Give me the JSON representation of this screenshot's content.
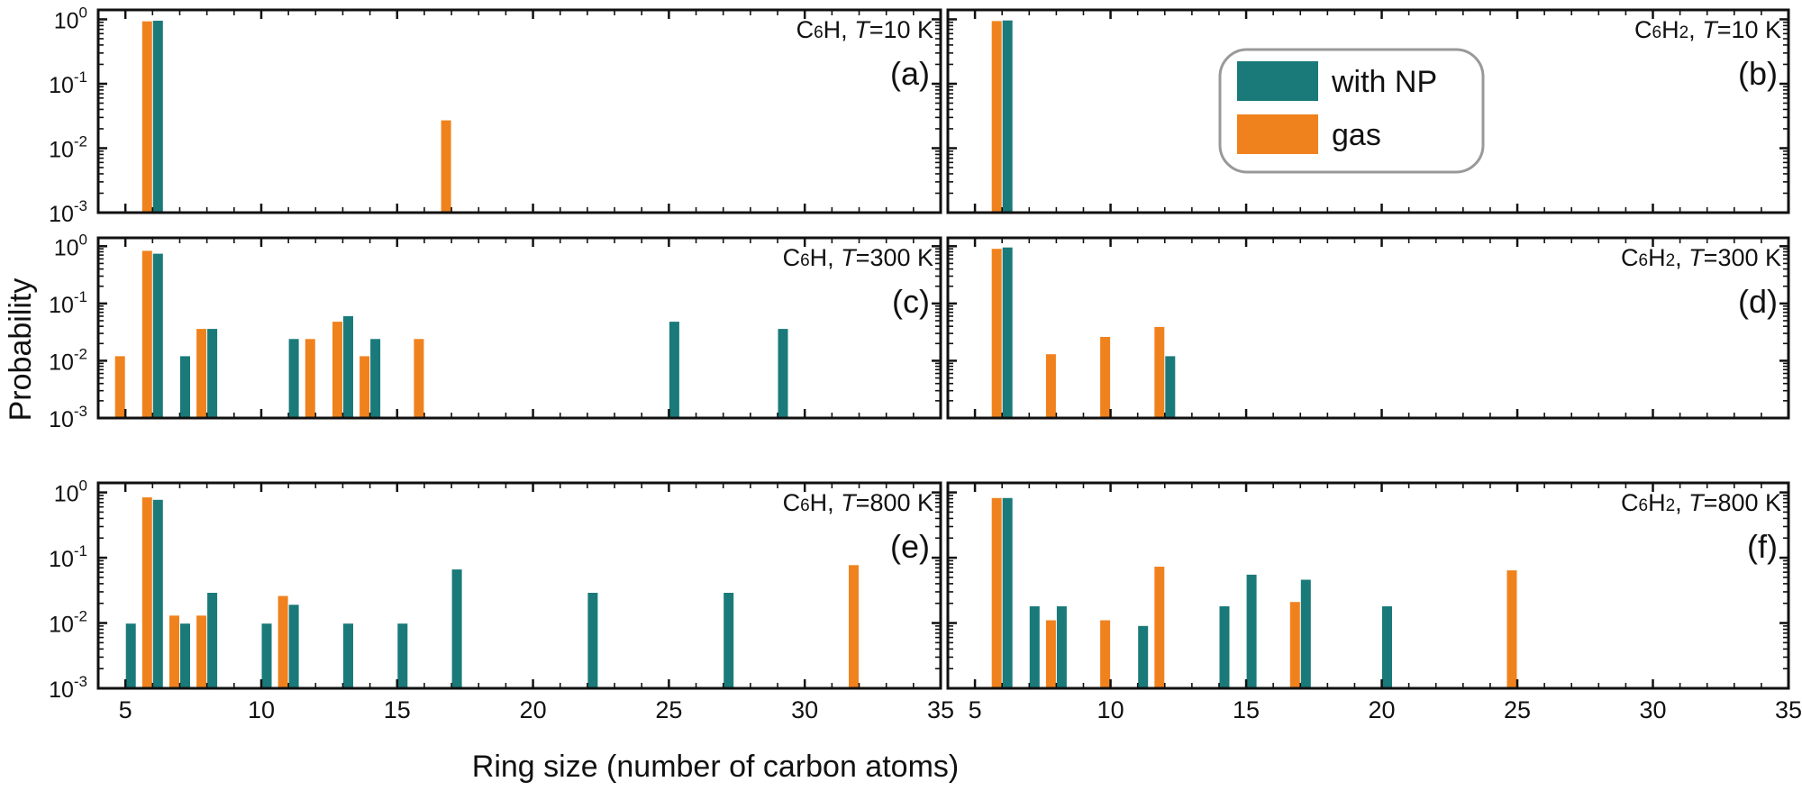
{
  "colors": {
    "with_np": "#1a7a7a",
    "gas": "#f0821e",
    "axis": "#111111",
    "legend_border": "#999999"
  },
  "chart_data": {
    "type": "bar",
    "xlabel": "Ring size (number of carbon atoms)",
    "ylabel": "Probability",
    "xlim": [
      4,
      35
    ],
    "ylim": [
      0.001,
      1.4
    ],
    "yscale": "log",
    "x_ticks": [
      5,
      10,
      15,
      20,
      25,
      30,
      35
    ],
    "y_ticks": [
      {
        "value": 1,
        "base": "10",
        "exp": "0"
      },
      {
        "value": 0.1,
        "base": "10",
        "exp": "-1"
      },
      {
        "value": 0.01,
        "base": "10",
        "exp": "-2"
      },
      {
        "value": 0.001,
        "base": "10",
        "exp": "-3"
      }
    ],
    "legend": {
      "placement": "top-center of panel (b)",
      "entries": [
        {
          "series": "with_np",
          "label": "with NP"
        },
        {
          "series": "gas",
          "label": "gas"
        }
      ]
    },
    "panels": [
      {
        "id": "a",
        "label": "(a)",
        "molecule": "C",
        "sub": "6",
        "sub_tail": "H",
        "tlabel": "T",
        "tvalue": "=10 K",
        "series": [
          {
            "name": "with NP",
            "key": "with_np",
            "x": [
              6
            ],
            "y": [
              0.95
            ]
          },
          {
            "name": "gas",
            "key": "gas",
            "x": [
              6,
              17
            ],
            "y": [
              0.93,
              0.027
            ]
          }
        ]
      },
      {
        "id": "b",
        "label": "(b)",
        "molecule": "C",
        "sub": "6",
        "sub_tail": "H",
        "sub2": "2",
        "tlabel": "T",
        "tvalue": "=10 K",
        "series": [
          {
            "name": "with NP",
            "key": "with_np",
            "x": [
              6
            ],
            "y": [
              0.96
            ]
          },
          {
            "name": "gas",
            "key": "gas",
            "x": [
              6
            ],
            "y": [
              0.94
            ]
          }
        ]
      },
      {
        "id": "c",
        "label": "(c)",
        "molecule": "C",
        "sub": "6",
        "sub_tail": "H",
        "tlabel": "T",
        "tvalue": "=300 K",
        "series": [
          {
            "name": "with NP",
            "key": "with_np",
            "x": [
              6,
              7,
              8,
              11,
              13,
              14,
              25,
              29
            ],
            "y": [
              0.74,
              0.012,
              0.036,
              0.024,
              0.06,
              0.024,
              0.048,
              0.036
            ]
          },
          {
            "name": "gas",
            "key": "gas",
            "x": [
              5,
              6,
              8,
              12,
              13,
              14,
              16
            ],
            "y": [
              0.012,
              0.83,
              0.036,
              0.024,
              0.048,
              0.012,
              0.024
            ]
          }
        ]
      },
      {
        "id": "d",
        "label": "(d)",
        "molecule": "C",
        "sub": "6",
        "sub_tail": "H",
        "sub2": "2",
        "tlabel": "T",
        "tvalue": "=300 K",
        "series": [
          {
            "name": "with NP",
            "key": "with_np",
            "x": [
              6,
              12
            ],
            "y": [
              0.95,
              0.012
            ]
          },
          {
            "name": "gas",
            "key": "gas",
            "x": [
              6,
              8,
              10,
              12
            ],
            "y": [
              0.9,
              0.013,
              0.026,
              0.039
            ]
          }
        ]
      },
      {
        "id": "e",
        "label": "(e)",
        "molecule": "C",
        "sub": "6",
        "sub_tail": "H",
        "tlabel": "T",
        "tvalue": "=800 K",
        "series": [
          {
            "name": "with NP",
            "key": "with_np",
            "x": [
              5,
              6,
              7,
              8,
              10,
              11,
              13,
              15,
              17,
              22,
              27
            ],
            "y": [
              0.0098,
              0.77,
              0.0098,
              0.029,
              0.0098,
              0.019,
              0.0098,
              0.0098,
              0.066,
              0.029,
              0.029
            ]
          },
          {
            "name": "gas",
            "key": "gas",
            "x": [
              6,
              7,
              8,
              11,
              32
            ],
            "y": [
              0.84,
              0.013,
              0.013,
              0.026,
              0.077
            ]
          }
        ]
      },
      {
        "id": "f",
        "label": "(f)",
        "molecule": "C",
        "sub": "6",
        "sub_tail": "H",
        "sub2": "2",
        "tlabel": "T",
        "tvalue": "=800 K",
        "series": [
          {
            "name": "with NP",
            "key": "with_np",
            "x": [
              6,
              7,
              8,
              11,
              14,
              15,
              17,
              20
            ],
            "y": [
              0.82,
              0.018,
              0.018,
              0.009,
              0.018,
              0.055,
              0.046,
              0.018
            ]
          },
          {
            "name": "gas",
            "key": "gas",
            "x": [
              6,
              8,
              10,
              12,
              17,
              25
            ],
            "y": [
              0.82,
              0.011,
              0.011,
              0.073,
              0.021,
              0.064
            ]
          }
        ]
      }
    ]
  }
}
